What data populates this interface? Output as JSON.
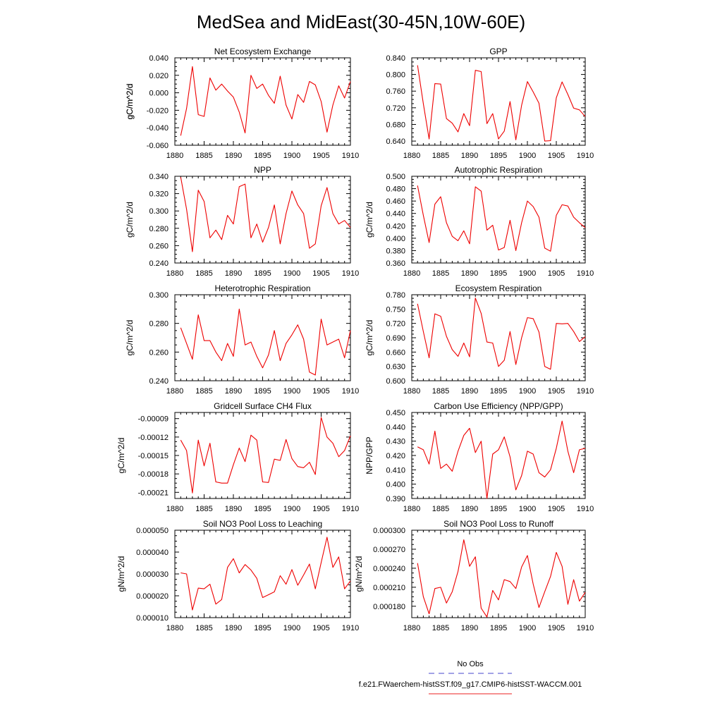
{
  "figure": {
    "title": "MedSea and MidEast(30-45N,10W-60E)",
    "legend": {
      "entries": [
        {
          "label": "No Obs",
          "color": "#4444cc",
          "style": "dashed"
        },
        {
          "label": "f.e21.FWaerchem-histSST.f09_g17.CMIP6-histSST-WACCM.001",
          "color": "#ee2222",
          "style": "solid"
        }
      ]
    },
    "line_color": "#ee0000"
  },
  "chart_data": [
    {
      "type": "line",
      "title": "Net Ecosystem Exchange",
      "ylabel": "gC/m^2/d",
      "xlim": [
        1880,
        1910
      ],
      "ylim": [
        -0.06,
        0.04
      ],
      "xticks": [
        1880,
        1885,
        1890,
        1895,
        1900,
        1905,
        1910
      ],
      "xtick_labels": [
        "1880",
        "1885",
        "1890",
        "1895",
        "1900",
        "1905",
        "1910"
      ],
      "yticks": [
        -0.06,
        -0.04,
        -0.02,
        0.0,
        0.02,
        0.04
      ],
      "ytick_labels": [
        "-0.060",
        "-0.040",
        "-0.020",
        "0.000",
        "0.020",
        "0.040"
      ],
      "x": [
        1881,
        1882,
        1883,
        1884,
        1885,
        1886,
        1887,
        1888,
        1889,
        1890,
        1891,
        1892,
        1893,
        1894,
        1895,
        1896,
        1897,
        1898,
        1899,
        1900,
        1901,
        1902,
        1903,
        1904,
        1905,
        1906,
        1907,
        1908,
        1909,
        1910
      ],
      "y": [
        -0.049,
        -0.018,
        0.03,
        -0.025,
        -0.027,
        0.017,
        0.003,
        0.01,
        0.002,
        -0.005,
        -0.022,
        -0.046,
        0.02,
        0.005,
        0.01,
        -0.003,
        -0.012,
        0.019,
        -0.014,
        -0.03,
        -0.002,
        -0.011,
        0.013,
        0.009,
        -0.01,
        -0.045,
        -0.014,
        0.008,
        -0.006,
        0.013
      ]
    },
    {
      "type": "line",
      "title": "GPP",
      "ylabel": "gC/m^2/d",
      "xlim": [
        1880,
        1910
      ],
      "ylim": [
        0.63,
        0.84
      ],
      "xticks": [
        1880,
        1885,
        1890,
        1895,
        1900,
        1905,
        1910
      ],
      "xtick_labels": [
        "1880",
        "1885",
        "1890",
        "1895",
        "1900",
        "1905",
        "1910"
      ],
      "yticks": [
        0.64,
        0.68,
        0.72,
        0.76,
        0.8,
        0.84
      ],
      "ytick_labels": [
        "0.640",
        "0.680",
        "0.720",
        "0.760",
        "0.800",
        "0.840"
      ],
      "x": [
        1881,
        1882,
        1883,
        1884,
        1885,
        1886,
        1887,
        1888,
        1889,
        1890,
        1891,
        1892,
        1893,
        1894,
        1895,
        1896,
        1897,
        1898,
        1899,
        1900,
        1901,
        1902,
        1903,
        1904,
        1905,
        1906,
        1907,
        1908,
        1909,
        1910
      ],
      "y": [
        0.822,
        0.73,
        0.645,
        0.778,
        0.777,
        0.694,
        0.683,
        0.662,
        0.706,
        0.677,
        0.81,
        0.807,
        0.682,
        0.706,
        0.645,
        0.664,
        0.735,
        0.643,
        0.726,
        0.783,
        0.758,
        0.731,
        0.64,
        0.641,
        0.744,
        0.782,
        0.752,
        0.719,
        0.715,
        0.699
      ]
    },
    {
      "type": "line",
      "title": "NPP",
      "ylabel": "gC/m^2/d",
      "xlim": [
        1880,
        1910
      ],
      "ylim": [
        0.24,
        0.34
      ],
      "xticks": [
        1880,
        1885,
        1890,
        1895,
        1900,
        1905,
        1910
      ],
      "xtick_labels": [
        "1880",
        "1885",
        "1890",
        "1895",
        "1900",
        "1905",
        "1910"
      ],
      "yticks": [
        0.24,
        0.26,
        0.28,
        0.3,
        0.32,
        0.34
      ],
      "ytick_labels": [
        "0.240",
        "0.260",
        "0.280",
        "0.300",
        "0.320",
        "0.340"
      ],
      "x": [
        1881,
        1882,
        1883,
        1884,
        1885,
        1886,
        1887,
        1888,
        1889,
        1890,
        1891,
        1892,
        1893,
        1894,
        1895,
        1896,
        1897,
        1898,
        1899,
        1900,
        1901,
        1902,
        1903,
        1904,
        1905,
        1906,
        1907,
        1908,
        1909,
        1910
      ],
      "y": [
        0.339,
        0.302,
        0.253,
        0.324,
        0.311,
        0.269,
        0.278,
        0.267,
        0.295,
        0.285,
        0.328,
        0.331,
        0.269,
        0.285,
        0.264,
        0.281,
        0.307,
        0.262,
        0.297,
        0.323,
        0.307,
        0.297,
        0.257,
        0.262,
        0.306,
        0.327,
        0.297,
        0.285,
        0.289,
        0.281
      ]
    },
    {
      "type": "line",
      "title": "Autotrophic Respiration",
      "ylabel": "gC/m^2/d",
      "xlim": [
        1880,
        1910
      ],
      "ylim": [
        0.36,
        0.5
      ],
      "xticks": [
        1880,
        1885,
        1890,
        1895,
        1900,
        1905,
        1910
      ],
      "xtick_labels": [
        "1880",
        "1885",
        "1890",
        "1895",
        "1900",
        "1905",
        "1910"
      ],
      "yticks": [
        0.36,
        0.38,
        0.4,
        0.42,
        0.44,
        0.46,
        0.48,
        0.5
      ],
      "ytick_labels": [
        "0.360",
        "0.380",
        "0.400",
        "0.420",
        "0.440",
        "0.460",
        "0.480",
        "0.500"
      ],
      "x": [
        1881,
        1882,
        1883,
        1884,
        1885,
        1886,
        1887,
        1888,
        1889,
        1890,
        1891,
        1892,
        1893,
        1894,
        1895,
        1896,
        1897,
        1898,
        1899,
        1900,
        1901,
        1902,
        1903,
        1904,
        1905,
        1906,
        1907,
        1908,
        1909,
        1910
      ],
      "y": [
        0.485,
        0.437,
        0.393,
        0.455,
        0.467,
        0.425,
        0.403,
        0.396,
        0.412,
        0.391,
        0.483,
        0.476,
        0.413,
        0.421,
        0.381,
        0.385,
        0.429,
        0.38,
        0.425,
        0.46,
        0.451,
        0.434,
        0.384,
        0.379,
        0.437,
        0.454,
        0.452,
        0.434,
        0.425,
        0.417
      ]
    },
    {
      "type": "line",
      "title": "Heterotrophic Respiration",
      "ylabel": "gC/m^2/d",
      "xlim": [
        1880,
        1910
      ],
      "ylim": [
        0.24,
        0.3
      ],
      "xticks": [
        1880,
        1885,
        1890,
        1895,
        1900,
        1905,
        1910
      ],
      "xtick_labels": [
        "1880",
        "1885",
        "1890",
        "1895",
        "1900",
        "1905",
        "1910"
      ],
      "yticks": [
        0.24,
        0.26,
        0.28,
        0.3
      ],
      "ytick_labels": [
        "0.240",
        "0.260",
        "0.280",
        "0.300"
      ],
      "x": [
        1881,
        1882,
        1883,
        1884,
        1885,
        1886,
        1887,
        1888,
        1889,
        1890,
        1891,
        1892,
        1893,
        1894,
        1895,
        1896,
        1897,
        1898,
        1899,
        1900,
        1901,
        1902,
        1903,
        1904,
        1905,
        1906,
        1907,
        1908,
        1909,
        1910
      ],
      "y": [
        0.277,
        0.266,
        0.255,
        0.286,
        0.268,
        0.268,
        0.26,
        0.254,
        0.266,
        0.257,
        0.29,
        0.265,
        0.267,
        0.257,
        0.249,
        0.258,
        0.275,
        0.254,
        0.266,
        0.272,
        0.279,
        0.269,
        0.246,
        0.244,
        0.283,
        0.265,
        0.267,
        0.269,
        0.256,
        0.275
      ]
    },
    {
      "type": "line",
      "title": "Ecosystem Respiration",
      "ylabel": "gC/m^2/d",
      "xlim": [
        1880,
        1910
      ],
      "ylim": [
        0.6,
        0.78
      ],
      "xticks": [
        1880,
        1885,
        1890,
        1895,
        1900,
        1905,
        1910
      ],
      "xtick_labels": [
        "1880",
        "1885",
        "1890",
        "1895",
        "1900",
        "1905",
        "1910"
      ],
      "yticks": [
        0.6,
        0.63,
        0.66,
        0.69,
        0.72,
        0.75,
        0.78
      ],
      "ytick_labels": [
        "0.600",
        "0.630",
        "0.660",
        "0.690",
        "0.720",
        "0.750",
        "0.780"
      ],
      "x": [
        1881,
        1882,
        1883,
        1884,
        1885,
        1886,
        1887,
        1888,
        1889,
        1890,
        1891,
        1892,
        1893,
        1894,
        1895,
        1896,
        1897,
        1898,
        1899,
        1900,
        1901,
        1902,
        1903,
        1904,
        1905,
        1906,
        1907,
        1908,
        1909,
        1910
      ],
      "y": [
        0.761,
        0.703,
        0.648,
        0.74,
        0.735,
        0.693,
        0.665,
        0.651,
        0.679,
        0.65,
        0.773,
        0.741,
        0.681,
        0.679,
        0.63,
        0.643,
        0.703,
        0.634,
        0.69,
        0.732,
        0.73,
        0.702,
        0.63,
        0.624,
        0.72,
        0.719,
        0.72,
        0.703,
        0.682,
        0.692
      ]
    },
    {
      "type": "line",
      "title": "Gridcell Surface CH4 Flux",
      "ylabel": "gC/m^2/d",
      "xlim": [
        1880,
        1910
      ],
      "ylim": [
        -0.00022,
        -8e-05
      ],
      "xticks": [
        1880,
        1885,
        1890,
        1895,
        1900,
        1905,
        1910
      ],
      "xtick_labels": [
        "1880",
        "1885",
        "1890",
        "1895",
        "1900",
        "1905",
        "1910"
      ],
      "yticks": [
        -0.00021,
        -0.00018,
        -0.00015,
        -0.00012,
        -9e-05
      ],
      "ytick_labels": [
        "-0.00021",
        "-0.00018",
        "-0.00015",
        "-0.00012",
        "-0.00009"
      ],
      "x": [
        1881,
        1882,
        1883,
        1884,
        1885,
        1886,
        1887,
        1888,
        1889,
        1890,
        1891,
        1892,
        1893,
        1894,
        1895,
        1896,
        1897,
        1898,
        1899,
        1900,
        1901,
        1902,
        1903,
        1904,
        1905,
        1906,
        1907,
        1908,
        1909,
        1910
      ],
      "y": [
        -0.000125,
        -0.000142,
        -0.000211,
        -0.000125,
        -0.000167,
        -0.00013,
        -0.000193,
        -0.000195,
        -0.000195,
        -0.000165,
        -0.000138,
        -0.00016,
        -0.000117,
        -0.000125,
        -0.000193,
        -0.000194,
        -0.000156,
        -0.000158,
        -0.000124,
        -0.000155,
        -0.000168,
        -0.00017,
        -0.000161,
        -0.000181,
        -8.8e-05,
        -0.00012,
        -0.00013,
        -0.000152,
        -0.000142,
        -0.000118
      ]
    },
    {
      "type": "line",
      "title": "Carbon Use Efficiency (NPP/GPP)",
      "ylabel": "NPP/GPP",
      "xlim": [
        1880,
        1910
      ],
      "ylim": [
        0.39,
        0.45
      ],
      "xticks": [
        1880,
        1885,
        1890,
        1895,
        1900,
        1905,
        1910
      ],
      "xtick_labels": [
        "1880",
        "1885",
        "1890",
        "1895",
        "1900",
        "1905",
        "1910"
      ],
      "yticks": [
        0.39,
        0.4,
        0.41,
        0.42,
        0.43,
        0.44,
        0.45
      ],
      "ytick_labels": [
        "0.390",
        "0.400",
        "0.410",
        "0.420",
        "0.430",
        "0.440",
        "0.450"
      ],
      "x": [
        1881,
        1882,
        1883,
        1884,
        1885,
        1886,
        1887,
        1888,
        1889,
        1890,
        1891,
        1892,
        1893,
        1894,
        1895,
        1896,
        1897,
        1898,
        1899,
        1900,
        1901,
        1902,
        1903,
        1904,
        1905,
        1906,
        1907,
        1908,
        1909,
        1910
      ],
      "y": [
        0.426,
        0.424,
        0.414,
        0.437,
        0.411,
        0.414,
        0.409,
        0.423,
        0.434,
        0.439,
        0.422,
        0.43,
        0.39,
        0.421,
        0.424,
        0.433,
        0.419,
        0.396,
        0.406,
        0.423,
        0.421,
        0.408,
        0.405,
        0.41,
        0.425,
        0.444,
        0.423,
        0.408,
        0.424,
        0.425
      ]
    },
    {
      "type": "line",
      "title": "Soil NO3 Pool Loss to Leaching",
      "ylabel": "gN/m^2/d",
      "xlim": [
        1880,
        1910
      ],
      "ylim": [
        1e-05,
        5e-05
      ],
      "xticks": [
        1880,
        1885,
        1890,
        1895,
        1900,
        1905,
        1910
      ],
      "xtick_labels": [
        "1880",
        "1885",
        "1890",
        "1895",
        "1900",
        "1905",
        "1910"
      ],
      "yticks": [
        1e-05,
        2e-05,
        3e-05,
        4e-05,
        5e-05
      ],
      "ytick_labels": [
        "0.000010",
        "0.000020",
        "0.000030",
        "0.000040",
        "0.000050"
      ],
      "x": [
        1881,
        1882,
        1883,
        1884,
        1885,
        1886,
        1887,
        1888,
        1889,
        1890,
        1891,
        1892,
        1893,
        1894,
        1895,
        1896,
        1897,
        1898,
        1899,
        1900,
        1901,
        1902,
        1903,
        1904,
        1905,
        1906,
        1907,
        1908,
        1909,
        1910
      ],
      "y": [
        3.05e-05,
        3e-05,
        1.35e-05,
        2.35e-05,
        2.32e-05,
        2.53e-05,
        1.62e-05,
        1.83e-05,
        3.3e-05,
        3.7e-05,
        3.05e-05,
        3.43e-05,
        3.18e-05,
        2.8e-05,
        1.92e-05,
        2.05e-05,
        2.18e-05,
        2.92e-05,
        2.53e-05,
        3.2e-05,
        2.48e-05,
        2.95e-05,
        3.45e-05,
        2.32e-05,
        3.52e-05,
        4.68e-05,
        3.3e-05,
        3.78e-05,
        2.32e-05,
        2.68e-05
      ]
    },
    {
      "type": "line",
      "title": "Soil NO3 Pool Loss to Runoff",
      "ylabel": "gN/m^2/d",
      "xlim": [
        1880,
        1910
      ],
      "ylim": [
        0.000162,
        0.0003
      ],
      "xticks": [
        1880,
        1885,
        1890,
        1895,
        1900,
        1905,
        1910
      ],
      "xtick_labels": [
        "1880",
        "1885",
        "1890",
        "1895",
        "1900",
        "1905",
        "1910"
      ],
      "yticks": [
        0.00018,
        0.00021,
        0.00024,
        0.00027,
        0.0003
      ],
      "ytick_labels": [
        "0.000180",
        "0.000210",
        "0.000240",
        "0.000270",
        "0.000300"
      ],
      "x": [
        1881,
        1882,
        1883,
        1884,
        1885,
        1886,
        1887,
        1888,
        1889,
        1890,
        1891,
        1892,
        1893,
        1894,
        1895,
        1896,
        1897,
        1898,
        1899,
        1900,
        1901,
        1902,
        1903,
        1904,
        1905,
        1906,
        1907,
        1908,
        1909,
        1910
      ],
      "y": [
        0.000248,
        0.000195,
        0.000168,
        0.000208,
        0.00021,
        0.000185,
        0.000203,
        0.000235,
        0.000285,
        0.000243,
        0.000258,
        0.000177,
        0.000163,
        0.000205,
        0.00019,
        0.000222,
        0.000219,
        0.000208,
        0.000242,
        0.00026,
        0.000215,
        0.000178,
        0.000203,
        0.000227,
        0.000265,
        0.000243,
        0.000183,
        0.000222,
        0.000188,
        0.000202
      ]
    }
  ]
}
